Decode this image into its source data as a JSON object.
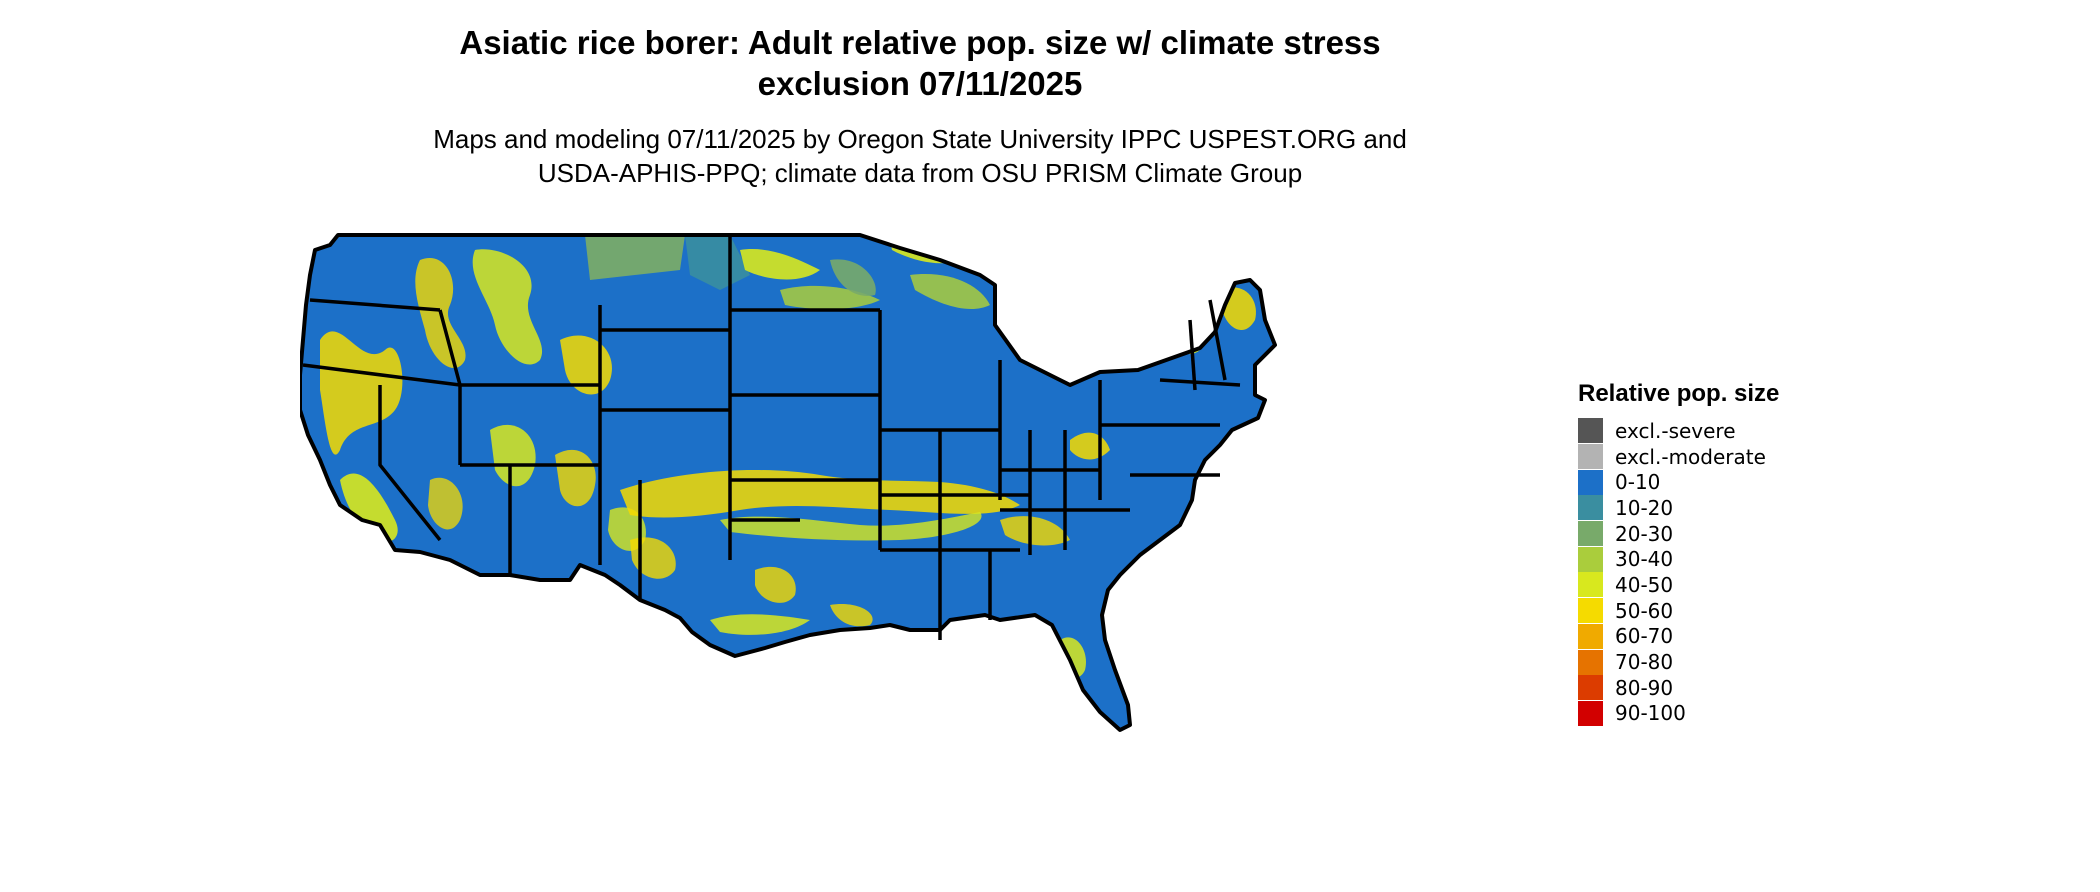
{
  "title": {
    "line1": "Asiatic rice borer: Adult relative pop. size w/ climate stress",
    "line2": "exclusion 07/11/2025"
  },
  "subtitle": {
    "line1": "Maps and modeling 07/11/2025 by Oregon State University IPPC USPEST.ORG and",
    "line2": "USDA-APHIS-PPQ; climate data from OSU PRISM Climate Group"
  },
  "legend": {
    "title": "Relative pop. size",
    "items": [
      {
        "label": "excl.-severe",
        "color": "#555555"
      },
      {
        "label": "excl.-moderate",
        "color": "#b3b3b3"
      },
      {
        "label": "0-10",
        "color": "#1c70c8"
      },
      {
        "label": "10-20",
        "color": "#3a8ea0"
      },
      {
        "label": "20-30",
        "color": "#78aa6a"
      },
      {
        "label": "30-40",
        "color": "#aacd3c"
      },
      {
        "label": "40-50",
        "color": "#d8e81e"
      },
      {
        "label": "50-60",
        "color": "#f5db00"
      },
      {
        "label": "60-70",
        "color": "#f0aa00"
      },
      {
        "label": "70-80",
        "color": "#e67300"
      },
      {
        "label": "80-90",
        "color": "#dc3c00"
      },
      {
        "label": "90-100",
        "color": "#d20000"
      }
    ]
  },
  "map": {
    "region": "Contiguous United States",
    "base_color": "#1c70c8",
    "border_color": "#000000",
    "hotspot_colors": [
      "#f5db00",
      "#d8e81e",
      "#aacd3c",
      "#78aa6a"
    ]
  }
}
